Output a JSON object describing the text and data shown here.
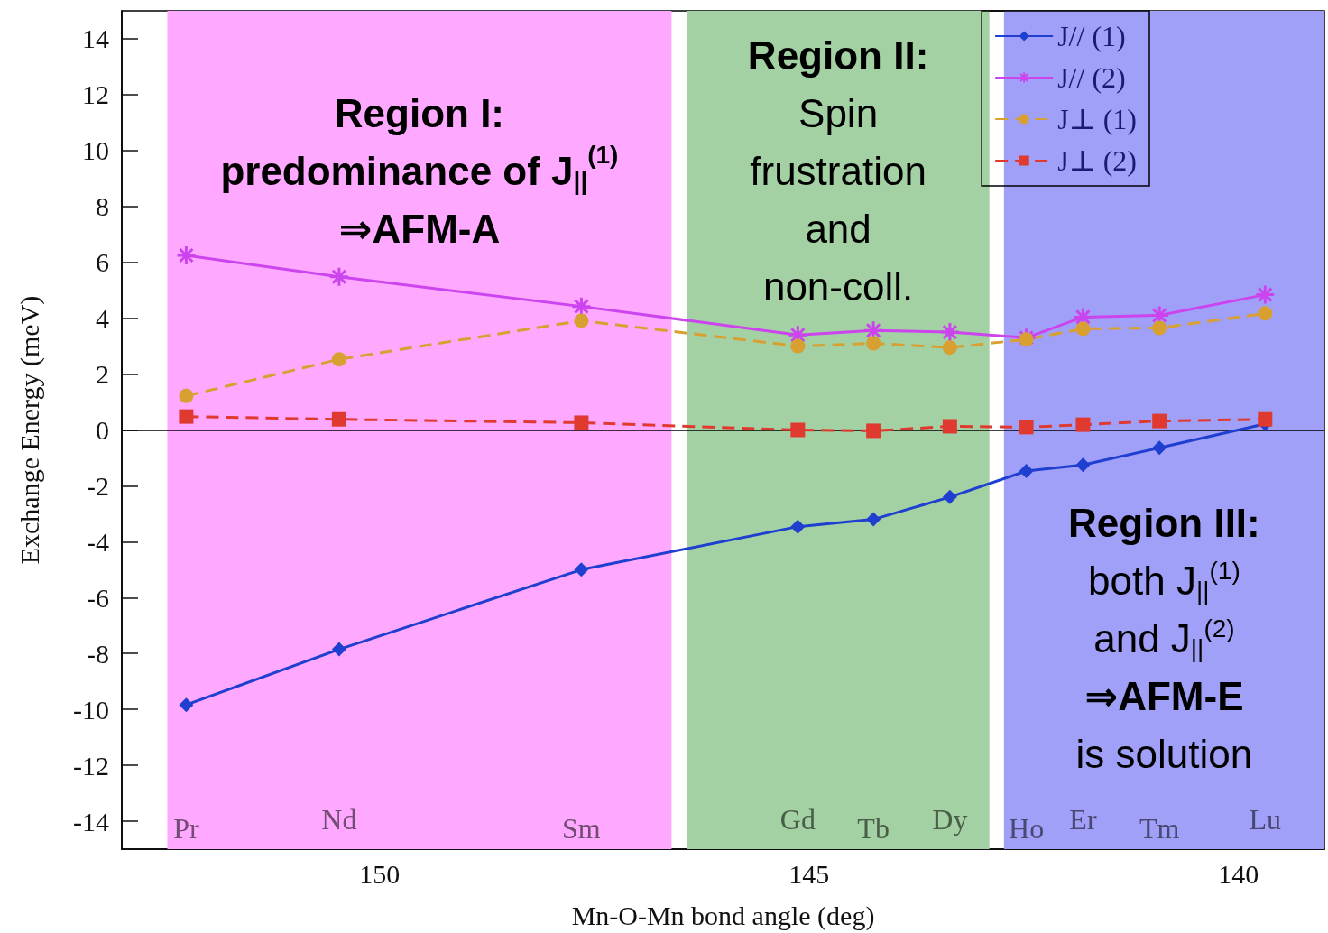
{
  "chart_data": {
    "type": "line",
    "xlabel": "Mn-O-Mn bond angle (deg)",
    "ylabel": "Exchange Energy (meV)",
    "x": [
      152.25,
      150.47,
      147.65,
      145.13,
      144.25,
      143.36,
      142.47,
      141.81,
      140.92,
      139.69
    ],
    "xlim": [
      153,
      139
    ],
    "xticks": [
      150,
      145,
      140
    ],
    "ylim": [
      -15,
      15
    ],
    "yticks": [
      -14,
      -12,
      -10,
      -8,
      -6,
      -4,
      -2,
      0,
      2,
      4,
      6,
      8,
      10,
      12,
      14
    ],
    "grid": false,
    "legend": "top right",
    "series": [
      {
        "name": "J// (1)",
        "color": "#1f3fd0",
        "marker": "diamond",
        "line_style": "solid",
        "values": [
          -9.84,
          -7.85,
          -5.0,
          -3.46,
          -3.2,
          -2.4,
          -1.47,
          -1.25,
          -0.64,
          0.22
        ]
      },
      {
        "name": "J// (2)",
        "color": "#cc44ee",
        "marker": "cross",
        "line_style": "solid",
        "values": [
          6.25,
          5.48,
          4.42,
          3.4,
          3.56,
          3.5,
          3.3,
          4.04,
          4.1,
          4.84
        ]
      },
      {
        "name": "J⊥ (1)",
        "color": "#d8a030",
        "marker": "circle",
        "line_style": "dashed",
        "values": [
          1.22,
          2.53,
          3.91,
          3.0,
          3.1,
          2.95,
          3.24,
          3.62,
          3.65,
          4.17
        ]
      },
      {
        "name": "J⊥ (2)",
        "color": "#e03a30",
        "marker": "square",
        "line_style": "dashed",
        "values": [
          0.48,
          0.38,
          0.26,
          0.0,
          -0.03,
          0.13,
          0.1,
          0.19,
          0.32,
          0.38
        ]
      }
    ],
    "ref_lines": [
      {
        "axis": "y",
        "value": 0,
        "color": "#000000"
      }
    ],
    "bands": [
      {
        "axis": "x",
        "from": 152.47,
        "to": 146.6,
        "color": "#ffa8ff"
      },
      {
        "axis": "x",
        "from": 146.42,
        "to": 142.9,
        "color": "#a3d1a3"
      },
      {
        "axis": "x",
        "from": 142.73,
        "to": 139,
        "color": "#a0a0f8"
      }
    ],
    "annotations": [
      "Region I:\npredominance of J$_{||}$$^{(1)}$\n⇒AFM-A",
      "Region II:\nSpin\nfrustration\nand\nnon-coll.",
      "Region III:\nboth J$_{||}$$^{(1)}$\nand J$_{||}$$^{(2)}$\n⇒AFM-E\nis solution",
      "Pr",
      "Nd",
      "Sm",
      "Gd",
      "Tb",
      "Dy",
      "Ho",
      "Er",
      "Tm",
      "Lu"
    ]
  }
}
